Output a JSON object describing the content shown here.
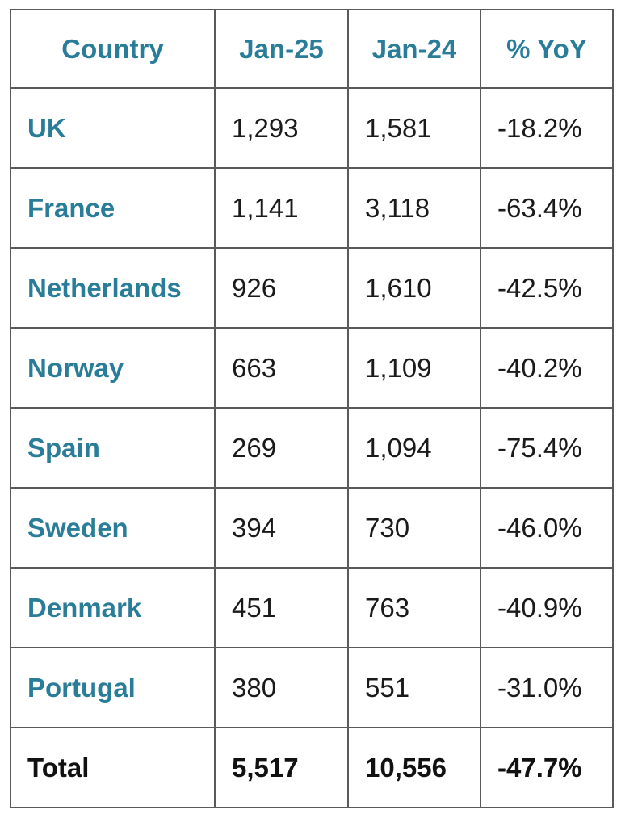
{
  "table": {
    "header": [
      "Country",
      "Jan-25",
      "Jan-24",
      "% YoY"
    ],
    "rows": [
      [
        "UK",
        "1,293",
        "1,581",
        "-18.2%"
      ],
      [
        "France",
        "1,141",
        "3,118",
        "-63.4%"
      ],
      [
        "Netherlands",
        "926",
        "1,610",
        "-42.5%"
      ],
      [
        "Norway",
        "663",
        "1,109",
        "-40.2%"
      ],
      [
        "Spain",
        "269",
        "1,094",
        "-75.4%"
      ],
      [
        "Sweden",
        "394",
        "730",
        "-46.0%"
      ],
      [
        "Denmark",
        "451",
        "763",
        "-40.9%"
      ],
      [
        "Portugal",
        "380",
        "551",
        "-31.0%"
      ]
    ],
    "total": [
      "Total",
      "5,517",
      "10,556",
      "-47.7%"
    ]
  }
}
